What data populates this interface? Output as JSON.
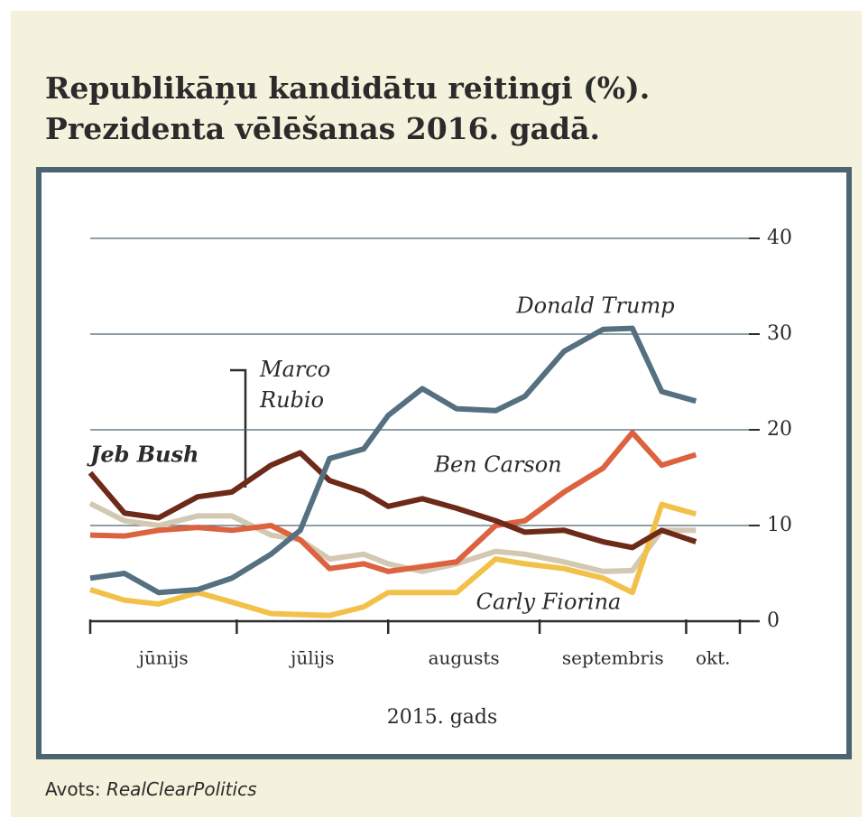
{
  "chart_data": {
    "type": "line",
    "title_lines": [
      "Republikāņu kandidātu reitingi (%).",
      "Prezidenta vēlēšanas 2016. gadā."
    ],
    "x_label": "2015. gads",
    "source_label": "Avots:",
    "source": "RealClearPolitics",
    "x": [
      0,
      7,
      14,
      22,
      29,
      37,
      43,
      49,
      56,
      61,
      68,
      75,
      83,
      89,
      97,
      105,
      111,
      117,
      124
    ],
    "xlim": [
      0,
      133
    ],
    "xticks": [
      0,
      30,
      61,
      92,
      122,
      133
    ],
    "month_labels": [
      "jūnijs",
      "jūlijs",
      "augusts",
      "septembris",
      "okt."
    ],
    "ylim": [
      0,
      40
    ],
    "yticks": [
      0,
      10,
      20,
      30,
      40
    ],
    "grid": true,
    "series": [
      {
        "name": "Marco Rubio",
        "color": "#d3c9b3",
        "values": [
          12.3,
          10.5,
          10,
          11,
          11,
          9,
          8.5,
          6.5,
          7,
          6,
          5.2,
          6,
          7.3,
          7,
          6.2,
          5.2,
          5.3,
          9.5,
          9.5
        ]
      },
      {
        "name": "Carly Fiorina",
        "color": "#f2c14a",
        "values": [
          3.3,
          2.2,
          1.8,
          3,
          2,
          0.8,
          0.7,
          0.6,
          1.5,
          3,
          3,
          3,
          6.5,
          6,
          5.5,
          4.5,
          3,
          12.2,
          11.2
        ]
      },
      {
        "name": "Ben Carson",
        "color": "#dc6240",
        "values": [
          9,
          8.9,
          9.5,
          9.8,
          9.5,
          10,
          8.5,
          5.5,
          6,
          5.2,
          5.7,
          6.2,
          10,
          10.5,
          13.5,
          16,
          19.7,
          16.3,
          17.4
        ]
      },
      {
        "name": "Jeb Bush",
        "color": "#6e2a18",
        "values": [
          15.5,
          11.3,
          10.8,
          13,
          13.5,
          16.3,
          17.6,
          14.7,
          13.5,
          12,
          12.8,
          11.8,
          10.5,
          9.3,
          9.5,
          8.3,
          7.7,
          9.5,
          8.3
        ]
      },
      {
        "name": "Donald Trump",
        "color": "#557080",
        "values": [
          4.5,
          5,
          3,
          3.3,
          4.5,
          7,
          9.5,
          17,
          18,
          21.5,
          24.3,
          22.2,
          22,
          23.5,
          28.2,
          30.5,
          30.6,
          24,
          23
        ]
      }
    ]
  }
}
